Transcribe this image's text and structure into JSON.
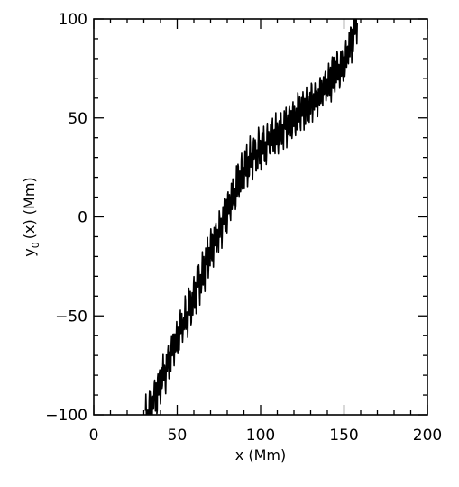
{
  "chart_data": {
    "type": "line",
    "title": "",
    "xlabel": "x (Mm)",
    "ylabel_main": "y",
    "ylabel_sub": "0",
    "ylabel_rest": "(x)  (Mm)",
    "xlim": [
      0,
      200
    ],
    "ylim": [
      -100,
      100
    ],
    "grid": false,
    "legend": "none",
    "x_ticks": [
      {
        "value": 0,
        "label": "0"
      },
      {
        "value": 50,
        "label": "50"
      },
      {
        "value": 100,
        "label": "100"
      },
      {
        "value": 150,
        "label": "150"
      },
      {
        "value": 200,
        "label": "200"
      }
    ],
    "y_ticks": [
      {
        "value": -100,
        "label": "−100"
      },
      {
        "value": -50,
        "label": "−50"
      },
      {
        "value": 0,
        "label": "0"
      },
      {
        "value": 50,
        "label": "50"
      },
      {
        "value": 100,
        "label": "100"
      }
    ],
    "line_color": "#000000",
    "series": [
      {
        "x": [
          31,
          32.5,
          34,
          36,
          38,
          40,
          42,
          44,
          46,
          48,
          50,
          52,
          54,
          56,
          58,
          60,
          62,
          64,
          66,
          68,
          70,
          72,
          74,
          76,
          78,
          80,
          82,
          84,
          86,
          88,
          90,
          92,
          94,
          96,
          98,
          100,
          102,
          104,
          106,
          108,
          110,
          112,
          114,
          116,
          118,
          120,
          122,
          124,
          126,
          128,
          130,
          132,
          134,
          136,
          138,
          140,
          142,
          144,
          146,
          148,
          150,
          152,
          154,
          156,
          158
        ],
        "y": [
          -101,
          -99,
          -96,
          -92,
          -88,
          -84,
          -79,
          -75,
          -70,
          -66,
          -62,
          -57,
          -53,
          -49,
          -44,
          -40,
          -35,
          -31,
          -27,
          -22,
          -18,
          -13,
          -9,
          -5,
          -1,
          4,
          8,
          12,
          16,
          20,
          23,
          26,
          29,
          31,
          33,
          35,
          36,
          38,
          39,
          41,
          42,
          44,
          45,
          47,
          48,
          50,
          51,
          53,
          55,
          56,
          58,
          60,
          61,
          63,
          65,
          67,
          69,
          71,
          73,
          76,
          79,
          83,
          88,
          93,
          100
        ]
      }
    ]
  }
}
